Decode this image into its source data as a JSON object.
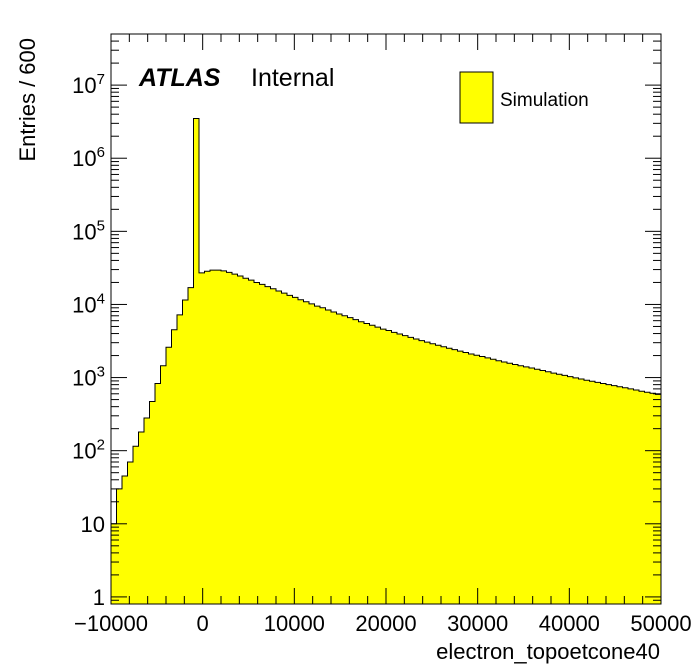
{
  "chart_data": {
    "type": "bar",
    "histogram": true,
    "xlabel": "electron_topoetcone40",
    "ylabel": "Entries / 600",
    "xlim": [
      -10000,
      50000
    ],
    "ylim": [
      0.8,
      50000000
    ],
    "log_y": true,
    "x_ticks": [
      -10000,
      0,
      10000,
      20000,
      30000,
      40000,
      50000
    ],
    "x_tick_labels": [
      "−10000",
      "0",
      "10000",
      "20000",
      "30000",
      "40000",
      "50000"
    ],
    "y_ticks": [
      1,
      10,
      100,
      1000,
      10000,
      100000,
      1000000,
      10000000
    ],
    "y_tick_labels": [
      {
        "base": "1",
        "exp": ""
      },
      {
        "base": "10",
        "exp": ""
      },
      {
        "base": "10",
        "exp": "2"
      },
      {
        "base": "10",
        "exp": "3"
      },
      {
        "base": "10",
        "exp": "4"
      },
      {
        "base": "10",
        "exp": "5"
      },
      {
        "base": "10",
        "exp": "6"
      },
      {
        "base": "10",
        "exp": "7"
      }
    ],
    "bin_width": 600,
    "x_start": -10000,
    "bin_values": [
      10,
      30,
      45,
      70,
      115,
      180,
      280,
      470,
      830,
      1450,
      2600,
      4500,
      7200,
      11500,
      17000,
      3500000,
      27000,
      28500,
      29500,
      29500,
      28800,
      27500,
      26000,
      24500,
      22800,
      21500,
      20000,
      18800,
      17500,
      16400,
      15300,
      14300,
      13300,
      12500,
      11600,
      10900,
      10200,
      9500,
      9000,
      8400,
      7900,
      7400,
      7000,
      6600,
      6200,
      5800,
      5500,
      5200,
      4900,
      4600,
      4400,
      4150,
      3950,
      3750,
      3550,
      3370,
      3200,
      3050,
      2900,
      2770,
      2640,
      2520,
      2410,
      2300,
      2200,
      2100,
      2020,
      1940,
      1860,
      1780,
      1700,
      1630,
      1570,
      1510,
      1450,
      1400,
      1350,
      1300,
      1250,
      1200,
      1150,
      1110,
      1070,
      1030,
      990,
      955,
      920,
      890,
      860,
      830,
      800,
      775,
      750,
      725,
      700,
      675,
      650,
      630,
      610,
      590
    ],
    "series": [
      {
        "name": "Simulation",
        "color": "#ffff00"
      }
    ],
    "annotations": {
      "experiment": "ATLAS",
      "status": "Internal"
    },
    "legend_position": "top-right",
    "grid": false
  }
}
